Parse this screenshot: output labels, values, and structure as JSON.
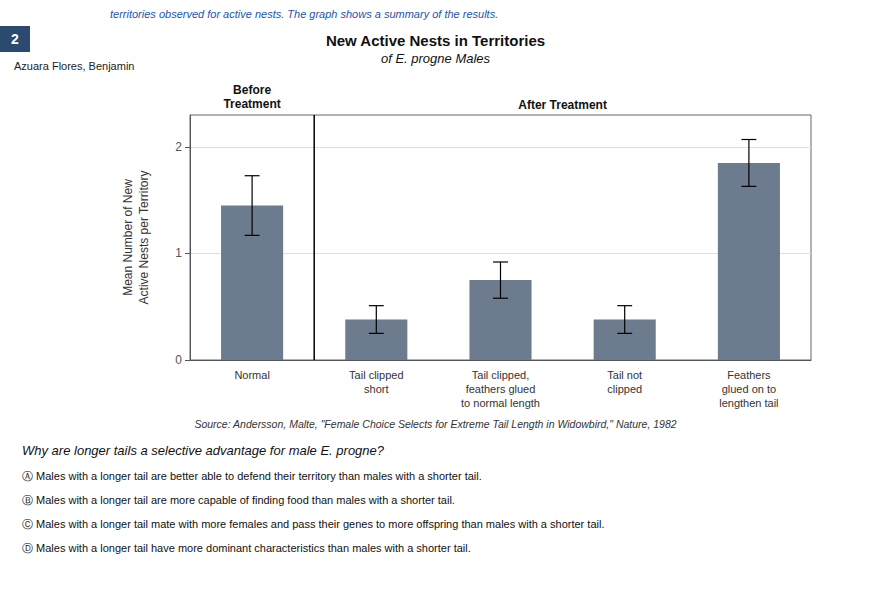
{
  "chart_data": {
    "type": "bar",
    "title": "New Active Nests in Territories",
    "subtitle": "of E. progne Males",
    "ylabel": "Mean Number of New\nActive Nests per Territory",
    "categories": [
      "Normal",
      "Tail clipped\nshort",
      "Tail clipped,\nfeathers glued\nto normal length",
      "Tail not\nclipped",
      "Feathers\nglued on to\nlengthen tail"
    ],
    "values": [
      1.45,
      0.38,
      0.75,
      0.38,
      1.85
    ],
    "error_bars": [
      0.28,
      0.13,
      0.17,
      0.13,
      0.22
    ],
    "color": "#6c7b8e",
    "ylim": [
      0,
      2.3
    ],
    "yticks": [
      0,
      1,
      2
    ],
    "grid": true,
    "divider_x": 0.5,
    "annotations": {
      "header": "territories observed for active nests. The graph shows a summary of the results.",
      "page": "2",
      "student": "Azuara Flores, Benjamin",
      "before": "Before\nTreatment",
      "after": "After Treatment",
      "source": "Source: Andersson, Malte, \"Female Choice Selects for Extreme Tail Length in Widowbird,\" Nature, 1982",
      "question": "Why are longer tails a selective advantage for male E. progne?",
      "answers": [
        "Ⓐ Males with a longer tail are better able to defend their territory than males with a shorter tail.",
        "Ⓑ Males with a longer tail are more capable of finding food than males with a shorter tail.",
        "Ⓒ Males with a longer tail mate with more females and pass their genes to more offspring than males with a shorter tail.",
        "Ⓓ Males with a longer tail have more dominant characteristics than males with a shorter tail."
      ]
    }
  }
}
